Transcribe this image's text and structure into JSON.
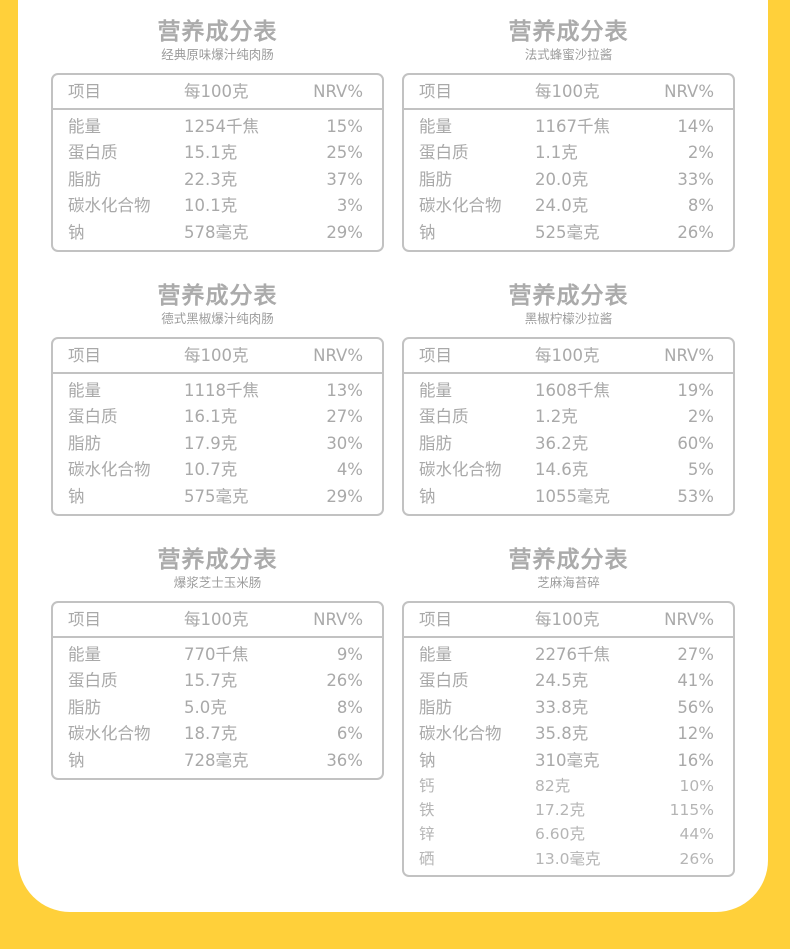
{
  "colors": {
    "background": "#FFD03A",
    "card": "#FFFFFF",
    "text": "#A9A9A9",
    "border": "#C2C2C2"
  },
  "headers": [
    "项目",
    "每100克",
    "NRV%"
  ],
  "panels": [
    {
      "title": "营养成分表",
      "subtitle": "经典原味爆汁纯肉肠",
      "rows": [
        [
          "能量",
          "1254千焦",
          "15%"
        ],
        [
          "蛋白质",
          "15.1克",
          "25%"
        ],
        [
          "脂肪",
          "22.3克",
          "37%"
        ],
        [
          "碳水化合物",
          "10.1克",
          "3%"
        ],
        [
          "钠",
          "578毫克",
          "29%"
        ]
      ],
      "extra_rows": []
    },
    {
      "title": "营养成分表",
      "subtitle": "法式蜂蜜沙拉酱",
      "rows": [
        [
          "能量",
          "1167千焦",
          "14%"
        ],
        [
          "蛋白质",
          "1.1克",
          "2%"
        ],
        [
          "脂肪",
          "20.0克",
          "33%"
        ],
        [
          "碳水化合物",
          "24.0克",
          "8%"
        ],
        [
          "钠",
          "525毫克",
          "26%"
        ]
      ],
      "extra_rows": []
    },
    {
      "title": "营养成分表",
      "subtitle": "德式黑椒爆汁纯肉肠",
      "rows": [
        [
          "能量",
          "1118千焦",
          "13%"
        ],
        [
          "蛋白质",
          "16.1克",
          "27%"
        ],
        [
          "脂肪",
          "17.9克",
          "30%"
        ],
        [
          "碳水化合物",
          "10.7克",
          "4%"
        ],
        [
          "钠",
          "575毫克",
          "29%"
        ]
      ],
      "extra_rows": []
    },
    {
      "title": "营养成分表",
      "subtitle": "黑椒柠檬沙拉酱",
      "rows": [
        [
          "能量",
          "1608千焦",
          "19%"
        ],
        [
          "蛋白质",
          "1.2克",
          "2%"
        ],
        [
          "脂肪",
          "36.2克",
          "60%"
        ],
        [
          "碳水化合物",
          "14.6克",
          "5%"
        ],
        [
          "钠",
          "1055毫克",
          "53%"
        ]
      ],
      "extra_rows": []
    },
    {
      "title": "营养成分表",
      "subtitle": "爆浆芝士玉米肠",
      "rows": [
        [
          "能量",
          "770千焦",
          "9%"
        ],
        [
          "蛋白质",
          "15.7克",
          "26%"
        ],
        [
          "脂肪",
          "5.0克",
          "8%"
        ],
        [
          "碳水化合物",
          "18.7克",
          "6%"
        ],
        [
          "钠",
          "728毫克",
          "36%"
        ]
      ],
      "extra_rows": []
    },
    {
      "title": "营养成分表",
      "subtitle": "芝麻海苔碎",
      "rows": [
        [
          "能量",
          "2276千焦",
          "27%"
        ],
        [
          "蛋白质",
          "24.5克",
          "41%"
        ],
        [
          "脂肪",
          "33.8克",
          "56%"
        ],
        [
          "碳水化合物",
          "35.8克",
          "12%"
        ],
        [
          "钠",
          "310毫克",
          "16%"
        ]
      ],
      "extra_rows": [
        [
          "钙",
          "82克",
          "10%"
        ],
        [
          "铁",
          "17.2克",
          "115%"
        ],
        [
          "锌",
          "6.60克",
          "44%"
        ],
        [
          "硒",
          "13.0毫克",
          "26%"
        ]
      ]
    }
  ]
}
